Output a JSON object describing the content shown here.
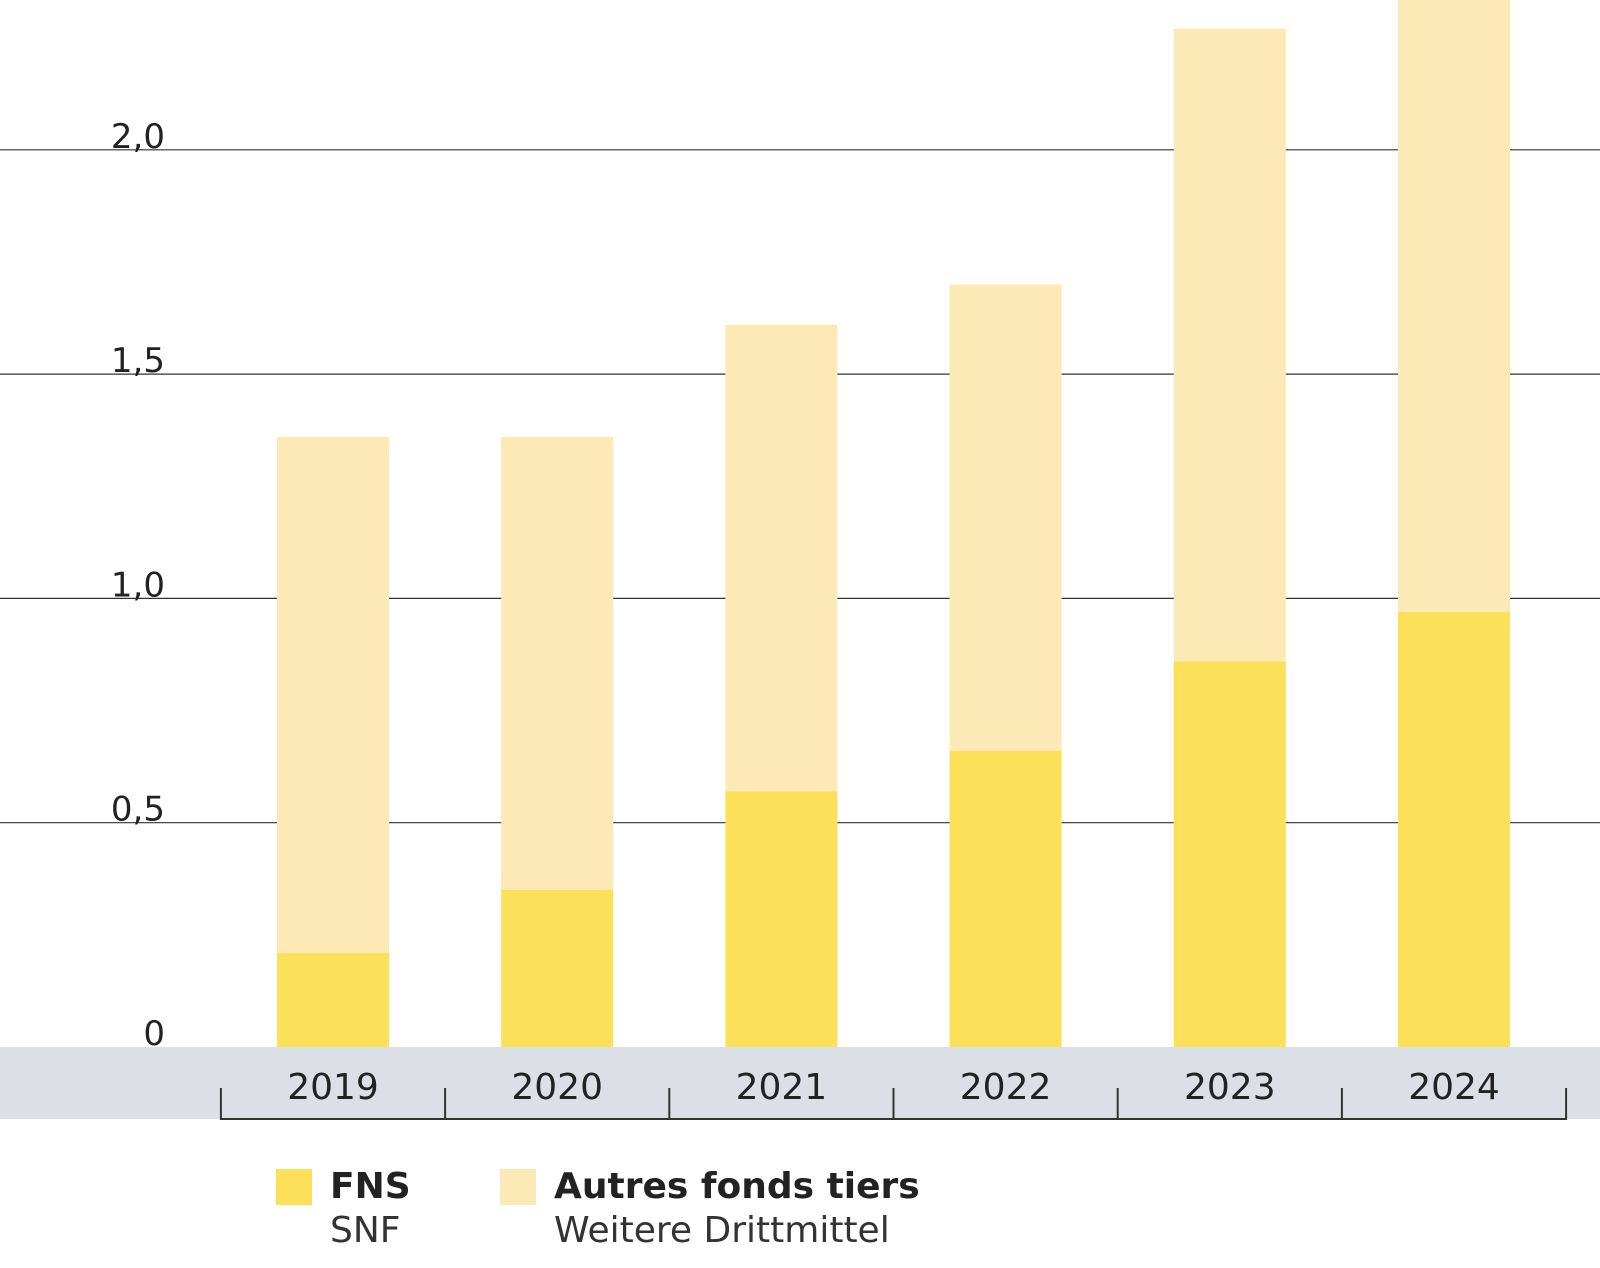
{
  "chart_data": {
    "type": "bar",
    "stacked": true,
    "categories": [
      "2019",
      "2020",
      "2021",
      "2022",
      "2023",
      "2024"
    ],
    "series": [
      {
        "name": "FNS",
        "name_secondary": "SNF",
        "color": "#fce05a",
        "values": [
          0.21,
          0.35,
          0.57,
          0.66,
          0.86,
          0.97
        ]
      },
      {
        "name": "Autres fonds tiers",
        "name_secondary": "Weitere Drittmittel",
        "color": "#fde9b5",
        "values": [
          1.15,
          1.01,
          1.04,
          1.04,
          1.41,
          1.42
        ]
      }
    ],
    "y_ticks": [
      {
        "value": 0,
        "label": "0"
      },
      {
        "value": 0.5,
        "label": "0,5"
      },
      {
        "value": 1.0,
        "label": "1,0"
      },
      {
        "value": 1.5,
        "label": "1,5"
      },
      {
        "value": 2.0,
        "label": "2,0"
      }
    ],
    "ylim": [
      0,
      2.34
    ],
    "grid": true,
    "legend_position": "bottom",
    "axis_band_color": "#dce0e6"
  }
}
